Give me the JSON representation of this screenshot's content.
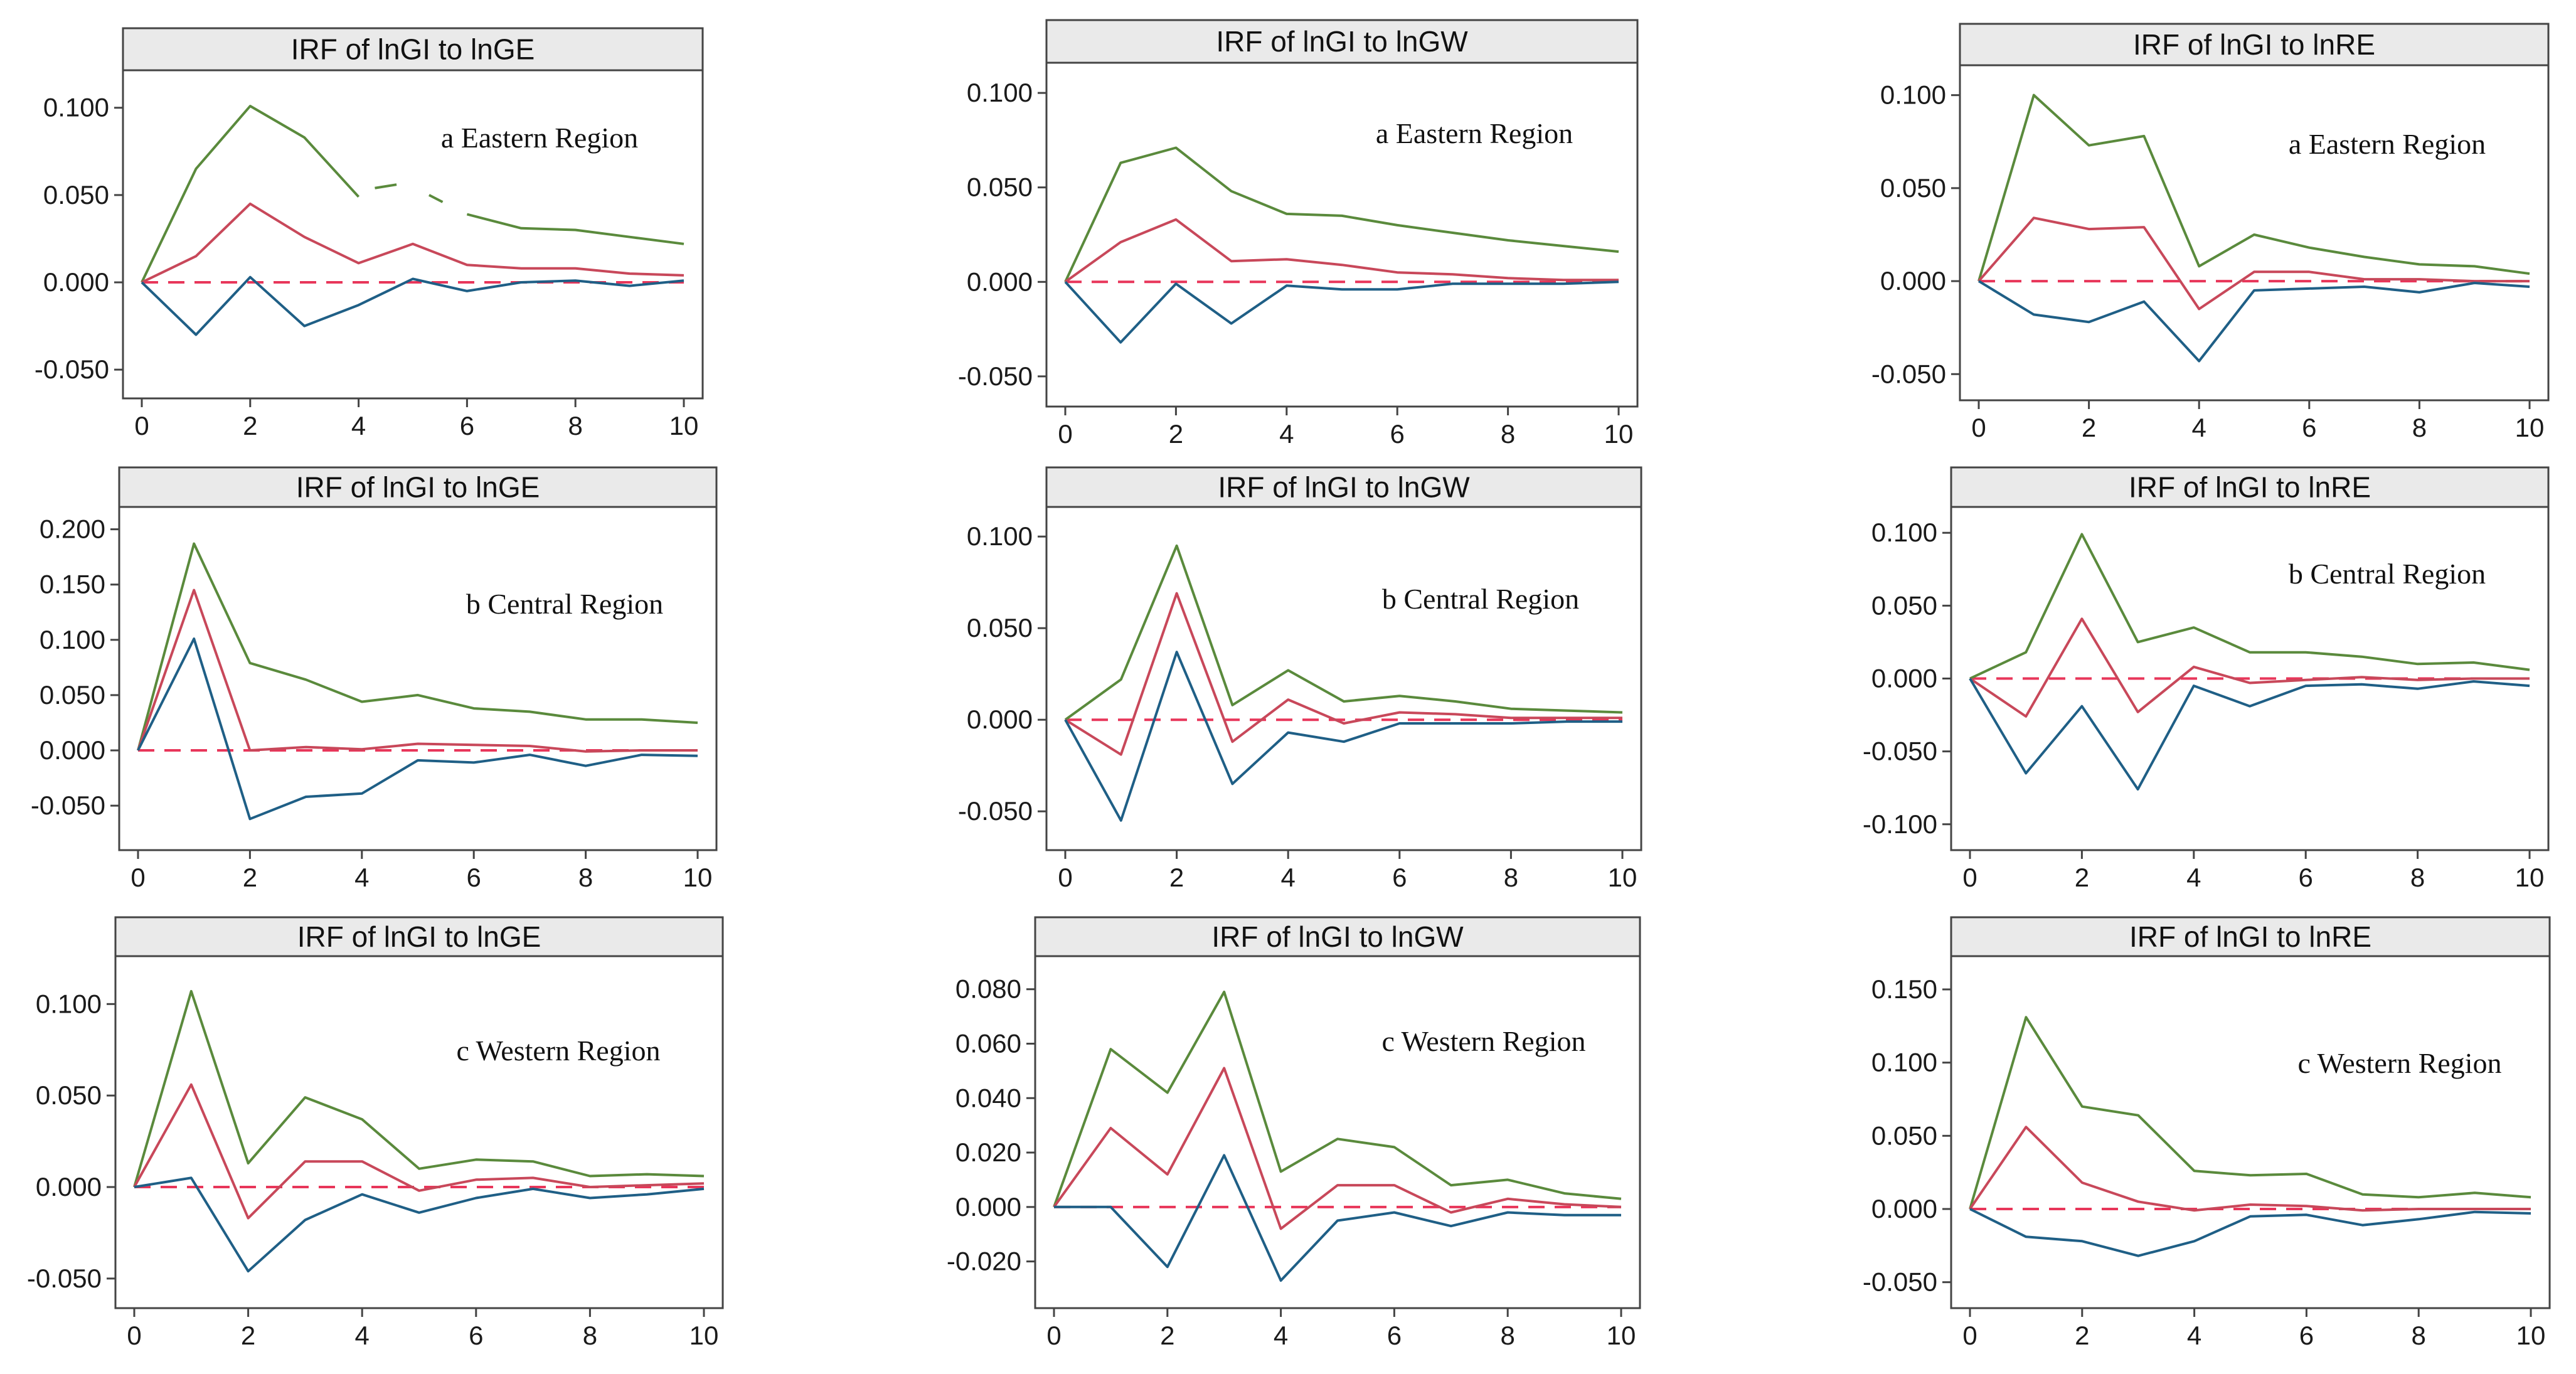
{
  "colors": {
    "upper": "#5a8a3c",
    "irf": "#c8485a",
    "lower": "#1f5f86",
    "zero": "#e8365a",
    "axis": "#444444",
    "header_bg": "#eaeaea"
  },
  "chart_data": [
    {
      "id": "east-ge",
      "type": "line",
      "title": "IRF of lnGI to lnGE",
      "annotation": "a Eastern Region",
      "row": 0,
      "col": 0,
      "x": [
        0,
        1,
        2,
        3,
        4,
        5,
        6,
        7,
        8,
        9,
        10
      ],
      "xticks": [
        0,
        2,
        4,
        6,
        8,
        10
      ],
      "xtick_labels": [
        "0",
        "2",
        "4",
        "6",
        "8",
        "10"
      ],
      "ylim": [
        -0.06,
        0.115
      ],
      "yticks": [
        -0.05,
        0,
        0.05,
        0.1
      ],
      "ytick_labels": [
        "-0.050",
        "0.000",
        "0.050",
        "0.100"
      ],
      "series": [
        {
          "name": "upper",
          "values": [
            0,
            0.065,
            0.101,
            0.083,
            0.049,
            null,
            0.039,
            0.031,
            0.03,
            0.026,
            0.022
          ]
        },
        {
          "name": "irf",
          "values": [
            0,
            0.015,
            0.045,
            0.026,
            0.011,
            0.022,
            0.01,
            0.008,
            0.008,
            0.005,
            0.004
          ]
        },
        {
          "name": "lower",
          "values": [
            0,
            -0.03,
            0.003,
            -0.025,
            -0.013,
            0.002,
            -0.005,
            0.0,
            0.001,
            -0.002,
            0.001
          ]
        }
      ],
      "gap_segment": [
        [
          4.3,
          0.054
        ],
        [
          4.7,
          0.056
        ],
        [
          5.3,
          0.05
        ],
        [
          5.55,
          0.046
        ]
      ]
    },
    {
      "id": "east-gw",
      "type": "line",
      "title": "IRF of lnGI to lnGW",
      "annotation": "a Eastern Region",
      "row": 0,
      "col": 1,
      "x": [
        0,
        1,
        2,
        3,
        4,
        5,
        6,
        7,
        8,
        9,
        10
      ],
      "xticks": [
        0,
        2,
        4,
        6,
        8,
        10
      ],
      "xtick_labels": [
        "0",
        "2",
        "4",
        "6",
        "8",
        "10"
      ],
      "ylim": [
        -0.06,
        0.11
      ],
      "yticks": [
        -0.05,
        0,
        0.05,
        0.1
      ],
      "ytick_labels": [
        "-0.050",
        "0.000",
        "0.050",
        "0.100"
      ],
      "series": [
        {
          "name": "upper",
          "values": [
            0,
            0.063,
            0.071,
            0.048,
            0.036,
            0.035,
            0.03,
            0.026,
            0.022,
            0.019,
            0.016
          ]
        },
        {
          "name": "irf",
          "values": [
            0,
            0.021,
            0.033,
            0.011,
            0.012,
            0.009,
            0.005,
            0.004,
            0.002,
            0.001,
            0.001
          ]
        },
        {
          "name": "lower",
          "values": [
            0,
            -0.032,
            -0.001,
            -0.022,
            -0.002,
            -0.004,
            -0.004,
            -0.001,
            -0.001,
            -0.001,
            0.0
          ]
        }
      ]
    },
    {
      "id": "east-re",
      "type": "line",
      "title": "IRF of lnGI to lnRE",
      "annotation": "a Eastern Region",
      "row": 0,
      "col": 2,
      "x": [
        0,
        1,
        2,
        3,
        4,
        5,
        6,
        7,
        8,
        9,
        10
      ],
      "xticks": [
        0,
        2,
        4,
        6,
        8,
        10
      ],
      "xtick_labels": [
        "0",
        "2",
        "4",
        "6",
        "8",
        "10"
      ],
      "ylim": [
        -0.058,
        0.11
      ],
      "yticks": [
        -0.05,
        0,
        0.05,
        0.1
      ],
      "ytick_labels": [
        "-0.050",
        "0.000",
        "0.050",
        "0.100"
      ],
      "series": [
        {
          "name": "upper",
          "values": [
            0,
            0.1,
            0.073,
            0.078,
            0.008,
            0.025,
            0.018,
            0.013,
            0.009,
            0.008,
            0.004
          ]
        },
        {
          "name": "irf",
          "values": [
            0,
            0.034,
            0.028,
            0.029,
            -0.015,
            0.005,
            0.005,
            0.001,
            0.001,
            0.0,
            0.0
          ]
        },
        {
          "name": "lower",
          "values": [
            0,
            -0.018,
            -0.022,
            -0.011,
            -0.043,
            -0.005,
            -0.004,
            -0.003,
            -0.006,
            -0.001,
            -0.003
          ]
        }
      ]
    },
    {
      "id": "central-ge",
      "type": "line",
      "title": "IRF of lnGI to lnGE",
      "annotation": "b Central Region",
      "row": 1,
      "col": 0,
      "x": [
        0,
        1,
        2,
        3,
        4,
        5,
        6,
        7,
        8,
        9,
        10
      ],
      "xticks": [
        0,
        2,
        4,
        6,
        8,
        10
      ],
      "xtick_labels": [
        "0",
        "2",
        "4",
        "6",
        "8",
        "10"
      ],
      "ylim": [
        -0.08,
        0.21
      ],
      "yticks": [
        -0.05,
        0,
        0.05,
        0.1,
        0.15,
        0.2
      ],
      "ytick_labels": [
        "-0.050",
        "0.000",
        "0.050",
        "0.100",
        "0.150",
        "0.200"
      ],
      "series": [
        {
          "name": "upper",
          "values": [
            0,
            0.187,
            0.079,
            0.064,
            0.044,
            0.05,
            0.038,
            0.035,
            0.028,
            0.028,
            0.025
          ]
        },
        {
          "name": "irf",
          "values": [
            0,
            0.145,
            0.0,
            0.003,
            0.001,
            0.006,
            0.005,
            0.004,
            -0.001,
            0.0,
            0.0
          ]
        },
        {
          "name": "lower",
          "values": [
            0,
            0.101,
            -0.062,
            -0.042,
            -0.039,
            -0.009,
            -0.011,
            -0.004,
            -0.014,
            -0.004,
            -0.005
          ]
        }
      ]
    },
    {
      "id": "central-gw",
      "type": "line",
      "title": "IRF of lnGI to lnGW",
      "annotation": "b Central Region",
      "row": 1,
      "col": 1,
      "x": [
        0,
        1,
        2,
        3,
        4,
        5,
        6,
        7,
        8,
        9,
        10
      ],
      "xticks": [
        0,
        2,
        4,
        6,
        8,
        10
      ],
      "xtick_labels": [
        "0",
        "2",
        "4",
        "6",
        "8",
        "10"
      ],
      "ylim": [
        -0.065,
        0.11
      ],
      "yticks": [
        -0.05,
        0,
        0.05,
        0.1
      ],
      "ytick_labels": [
        "-0.050",
        "0.000",
        "0.050",
        "0.100"
      ],
      "series": [
        {
          "name": "upper",
          "values": [
            0,
            0.022,
            0.095,
            0.008,
            0.027,
            0.01,
            0.013,
            0.01,
            0.006,
            0.005,
            0.004
          ]
        },
        {
          "name": "irf",
          "values": [
            0,
            -0.019,
            0.069,
            -0.012,
            0.011,
            -0.002,
            0.004,
            0.003,
            0.001,
            0.001,
            0.001
          ]
        },
        {
          "name": "lower",
          "values": [
            0,
            -0.055,
            0.037,
            -0.035,
            -0.007,
            -0.012,
            -0.002,
            -0.002,
            -0.002,
            -0.001,
            -0.001
          ]
        }
      ]
    },
    {
      "id": "central-re",
      "type": "line",
      "title": "IRF of lnGI to lnRE",
      "annotation": "b Central Region",
      "row": 1,
      "col": 2,
      "x": [
        0,
        1,
        2,
        3,
        4,
        5,
        6,
        7,
        8,
        9,
        10
      ],
      "xticks": [
        0,
        2,
        4,
        6,
        8,
        10
      ],
      "xtick_labels": [
        "0",
        "2",
        "4",
        "6",
        "8",
        "10"
      ],
      "ylim": [
        -0.11,
        0.11
      ],
      "yticks": [
        -0.1,
        -0.05,
        0,
        0.05,
        0.1
      ],
      "ytick_labels": [
        "-0.100",
        "-0.050",
        "0.000",
        "0.050",
        "0.100"
      ],
      "series": [
        {
          "name": "upper",
          "values": [
            0,
            0.018,
            0.099,
            0.025,
            0.035,
            0.018,
            0.018,
            0.015,
            0.01,
            0.011,
            0.006
          ]
        },
        {
          "name": "irf",
          "values": [
            0,
            -0.026,
            0.041,
            -0.023,
            0.008,
            -0.003,
            -0.001,
            0.001,
            -0.001,
            0.0,
            0.0
          ]
        },
        {
          "name": "lower",
          "values": [
            0,
            -0.065,
            -0.019,
            -0.076,
            -0.005,
            -0.019,
            -0.005,
            -0.004,
            -0.007,
            -0.002,
            -0.005
          ]
        }
      ]
    },
    {
      "id": "west-ge",
      "type": "line",
      "title": "IRF of lnGI to lnGE",
      "annotation": "c Western Region",
      "row": 2,
      "col": 0,
      "x": [
        0,
        1,
        2,
        3,
        4,
        5,
        6,
        7,
        8,
        9,
        10
      ],
      "xticks": [
        0,
        2,
        4,
        6,
        8,
        10
      ],
      "xtick_labels": [
        "0",
        "2",
        "4",
        "6",
        "8",
        "10"
      ],
      "ylim": [
        -0.06,
        0.12
      ],
      "yticks": [
        -0.05,
        0,
        0.05,
        0.1
      ],
      "ytick_labels": [
        "-0.050",
        "0.000",
        "0.050",
        "0.100"
      ],
      "series": [
        {
          "name": "upper",
          "values": [
            0,
            0.107,
            0.013,
            0.049,
            0.037,
            0.01,
            0.015,
            0.014,
            0.006,
            0.007,
            0.006
          ]
        },
        {
          "name": "irf",
          "values": [
            0,
            0.056,
            -0.017,
            0.014,
            0.014,
            -0.002,
            0.004,
            0.005,
            0.0,
            0.001,
            0.002
          ]
        },
        {
          "name": "lower",
          "values": [
            0,
            0.005,
            -0.046,
            -0.018,
            -0.004,
            -0.014,
            -0.006,
            -0.001,
            -0.006,
            -0.004,
            -0.001
          ]
        }
      ]
    },
    {
      "id": "west-gw",
      "type": "line",
      "title": "IRF of lnGI to lnGW",
      "annotation": "c Western Region",
      "row": 2,
      "col": 1,
      "x": [
        0,
        1,
        2,
        3,
        4,
        5,
        6,
        7,
        8,
        9,
        10
      ],
      "xticks": [
        0,
        2,
        4,
        6,
        8,
        10
      ],
      "xtick_labels": [
        "0",
        "2",
        "4",
        "6",
        "8",
        "10"
      ],
      "ylim": [
        -0.033,
        0.088
      ],
      "yticks": [
        -0.02,
        0,
        0.02,
        0.04,
        0.06,
        0.08
      ],
      "ytick_labels": [
        "-0.020",
        "0.000",
        "0.020",
        "0.040",
        "0.060",
        "0.080"
      ],
      "series": [
        {
          "name": "upper",
          "values": [
            0,
            0.058,
            0.042,
            0.079,
            0.013,
            0.025,
            0.022,
            0.008,
            0.01,
            0.005,
            0.003
          ]
        },
        {
          "name": "irf",
          "values": [
            0,
            0.029,
            0.012,
            0.051,
            -0.008,
            0.008,
            0.008,
            -0.002,
            0.003,
            0.001,
            0.0
          ]
        },
        {
          "name": "lower",
          "values": [
            0,
            0.0,
            -0.022,
            0.019,
            -0.027,
            -0.005,
            -0.002,
            -0.007,
            -0.002,
            -0.003,
            -0.003
          ]
        }
      ]
    },
    {
      "id": "west-re",
      "type": "line",
      "title": "IRF of lnGI to lnRE",
      "annotation": "c Western Region",
      "row": 2,
      "col": 2,
      "x": [
        0,
        1,
        2,
        3,
        4,
        5,
        6,
        7,
        8,
        9,
        10
      ],
      "xticks": [
        0,
        2,
        4,
        6,
        8,
        10
      ],
      "xtick_labels": [
        "0",
        "2",
        "4",
        "6",
        "8",
        "10"
      ],
      "ylim": [
        -0.06,
        0.165
      ],
      "yticks": [
        -0.05,
        0,
        0.05,
        0.1,
        0.15
      ],
      "ytick_labels": [
        "-0.050",
        "0.000",
        "0.050",
        "0.100",
        "0.150"
      ],
      "series": [
        {
          "name": "upper",
          "values": [
            0,
            0.131,
            0.07,
            0.064,
            0.026,
            0.023,
            0.024,
            0.01,
            0.008,
            0.011,
            0.008
          ]
        },
        {
          "name": "irf",
          "values": [
            0,
            0.056,
            0.018,
            0.005,
            -0.001,
            0.003,
            0.002,
            -0.001,
            0.0,
            0.0,
            0.0
          ]
        },
        {
          "name": "lower",
          "values": [
            0,
            -0.019,
            -0.022,
            -0.032,
            -0.022,
            -0.005,
            -0.004,
            -0.011,
            -0.007,
            -0.002,
            -0.003
          ]
        }
      ]
    }
  ]
}
